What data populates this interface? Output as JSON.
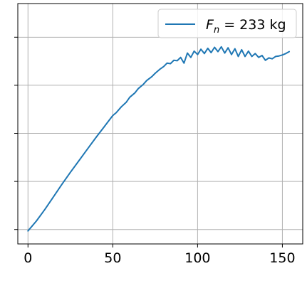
{
  "chart_data": {
    "type": "line",
    "title": "",
    "xlabel": "",
    "ylabel": "",
    "xlim": [
      -6,
      162
    ],
    "ylim": [
      -0.3,
      4.7
    ],
    "x_ticks": [
      0,
      50,
      100,
      150
    ],
    "x_tick_labels": [
      "0",
      "50",
      "100",
      "150"
    ],
    "y_ticks": [
      0,
      1,
      2,
      3,
      4
    ],
    "y_tick_labels": [
      "",
      "",
      "",
      "",
      ""
    ],
    "grid": true,
    "legend": {
      "position": "top-right",
      "entries": [
        {
          "label_main": "F",
          "label_sub": "n",
          "label_rest": " = 233 kg"
        }
      ]
    },
    "series": [
      {
        "name": "F_n = 233 kg",
        "color": "#1f77b4",
        "x": [
          0,
          5,
          10,
          15,
          20,
          25,
          30,
          35,
          40,
          45,
          48,
          50,
          52,
          55,
          58,
          60,
          63,
          65,
          68,
          70,
          73,
          75,
          78,
          80,
          82,
          84,
          86,
          88,
          90,
          92,
          94,
          96,
          98,
          100,
          102,
          104,
          106,
          108,
          110,
          112,
          114,
          116,
          118,
          120,
          122,
          124,
          126,
          128,
          130,
          132,
          134,
          136,
          138,
          140,
          142,
          144,
          146,
          148,
          150,
          152,
          154
        ],
        "y": [
          -0.03,
          0.18,
          0.42,
          0.68,
          0.94,
          1.19,
          1.43,
          1.67,
          1.91,
          2.14,
          2.28,
          2.37,
          2.43,
          2.55,
          2.65,
          2.75,
          2.84,
          2.93,
          3.02,
          3.1,
          3.18,
          3.25,
          3.34,
          3.39,
          3.46,
          3.45,
          3.52,
          3.51,
          3.58,
          3.46,
          3.67,
          3.58,
          3.71,
          3.64,
          3.75,
          3.66,
          3.77,
          3.68,
          3.79,
          3.7,
          3.8,
          3.67,
          3.78,
          3.64,
          3.76,
          3.6,
          3.74,
          3.6,
          3.71,
          3.6,
          3.66,
          3.58,
          3.62,
          3.52,
          3.57,
          3.55,
          3.6,
          3.61,
          3.63,
          3.66,
          3.7
        ]
      }
    ]
  }
}
